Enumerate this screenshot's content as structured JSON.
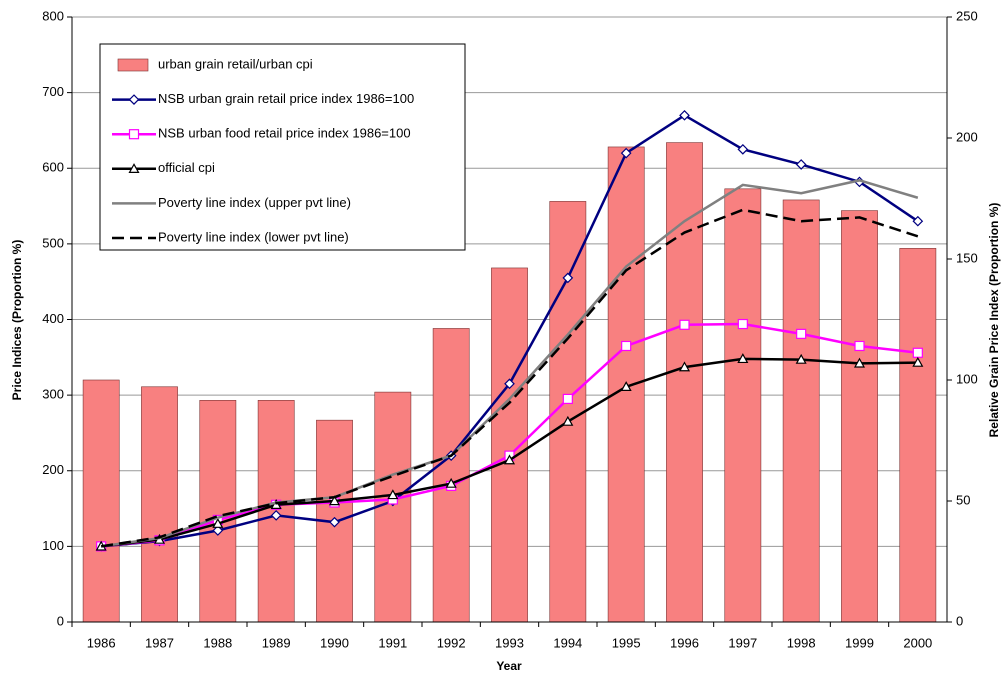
{
  "chart_data": {
    "type": "combo",
    "categories": [
      "1986",
      "1987",
      "1988",
      "1989",
      "1990",
      "1991",
      "1992",
      "1993",
      "1994",
      "1995",
      "1996",
      "1997",
      "1998",
      "1999",
      "2000"
    ],
    "x_label": "Year",
    "y_label": "Price Indices (Proportion %)",
    "y2_label": "Relative Grain Price Index (Proportion %)",
    "ylim": [
      0,
      800
    ],
    "yticks": [
      0,
      100,
      200,
      300,
      400,
      500,
      600,
      700,
      800
    ],
    "y2lim": [
      0,
      250
    ],
    "y2ticks": [
      0,
      50,
      100,
      150,
      200,
      250
    ],
    "grid": true,
    "legend": "upper left",
    "series": [
      {
        "name": "urban grain retail/urban cpi",
        "type": "bar",
        "axis": "y2",
        "color": "#f88080",
        "values": [
          100,
          97.2,
          91.6,
          91.6,
          83.4,
          95,
          121.3,
          146.3,
          173.8,
          196.3,
          198.1,
          179,
          174.4,
          170,
          154.4
        ]
      },
      {
        "name": "NSB urban grain retail price index 1986=100",
        "type": "line",
        "color": "#000080",
        "marker": "diamond",
        "dash": "solid",
        "values": [
          100,
          107,
          121,
          141,
          132,
          160,
          220,
          315,
          455,
          620,
          670,
          625,
          605,
          582,
          530
        ]
      },
      {
        "name": "NSB urban food retail price index 1986=100",
        "type": "line",
        "color": "#ff00ff",
        "marker": "square",
        "dash": "solid",
        "values": [
          100,
          108,
          135,
          155,
          158,
          162,
          180,
          220,
          295,
          365,
          393,
          394,
          381,
          365,
          356
        ]
      },
      {
        "name": "official cpi",
        "type": "line",
        "color": "#000000",
        "marker": "triangle",
        "dash": "solid",
        "values": [
          100,
          109,
          130,
          155,
          160,
          168,
          183,
          214,
          265,
          311,
          337,
          348,
          347,
          342,
          343
        ]
      },
      {
        "name": "Poverty line index (upper pvt line)",
        "type": "line",
        "color": "#808080",
        "marker": "none",
        "dash": "solid",
        "values": [
          100,
          111,
          138,
          158,
          165,
          195,
          220,
          295,
          380,
          470,
          530,
          578,
          567,
          584,
          561
        ]
      },
      {
        "name": "Poverty line index (lower pvt line)",
        "type": "line",
        "color": "#000000",
        "marker": "none",
        "dash": "dashed",
        "values": [
          100,
          112,
          140,
          157,
          165,
          193,
          220,
          290,
          375,
          465,
          515,
          545,
          530,
          535,
          510
        ]
      }
    ]
  }
}
